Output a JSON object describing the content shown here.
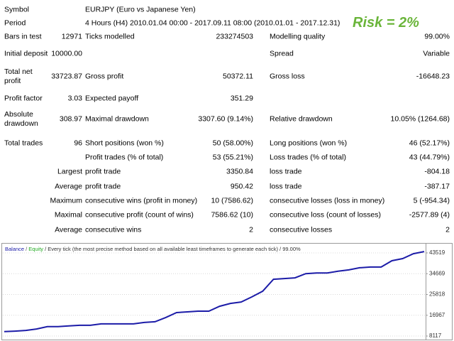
{
  "header": {
    "annotation": "Risk = 2%"
  },
  "report": {
    "rows": [
      {
        "label": "Symbol",
        "text": "EURJPY (Euro vs Japanese Yen)"
      },
      {
        "label": "Period",
        "text": "4 Hours (H4) 2010.01.04 00:00 - 2017.09.11 08:00 (2010.01.01 - 2017.12.31)"
      },
      {
        "label": "Bars in test",
        "value": "12971",
        "label2": "Ticks modelled",
        "value2": "233274503",
        "label3": "Modelling quality",
        "value3": "99.00%"
      },
      {
        "label": "Initial deposit",
        "value": "10000.00",
        "label3": "Spread",
        "value3": "Variable"
      },
      {
        "label": "Total net profit",
        "value": "33723.87",
        "label2": "Gross profit",
        "value2": "50372.11",
        "label3": "Gross loss",
        "value3": "-16648.23"
      },
      {
        "label": "Profit factor",
        "value": "3.03",
        "label2": "Expected payoff",
        "value2": "351.29"
      },
      {
        "label": "Absolute drawdown",
        "value": "308.97",
        "label2": "Maximal drawdown",
        "value2": "3307.60 (9.14%)",
        "label3": "Relative drawdown",
        "value3": "10.05% (1264.68)"
      },
      {
        "label": "Total trades",
        "value": "96",
        "label2": "Short positions (won %)",
        "value2": "50 (58.00%)",
        "label3": "Long positions (won %)",
        "value3": "46 (52.17%)"
      },
      {
        "label2": "Profit trades (% of total)",
        "value2": "53 (55.21%)",
        "label3": "Loss trades (% of total)",
        "value3": "43 (44.79%)"
      },
      {
        "prefix": "Largest",
        "label2": "profit trade",
        "value2": "3350.84",
        "label3": "loss trade",
        "value3": "-804.18"
      },
      {
        "prefix": "Average",
        "label2": "profit trade",
        "value2": "950.42",
        "label3": "loss trade",
        "value3": "-387.17"
      },
      {
        "prefix": "Maximum",
        "label2": "consecutive wins (profit in money)",
        "value2": "10 (7586.62)",
        "label3": "consecutive losses (loss in money)",
        "value3": "5 (-954.34)"
      },
      {
        "prefix": "Maximal",
        "label2": "consecutive profit (count of wins)",
        "value2": "7586.62 (10)",
        "label3": "consecutive loss (count of losses)",
        "value3": "-2577.89 (4)"
      },
      {
        "prefix": "Average",
        "label2": "consecutive wins",
        "value2": "2",
        "label3": "consecutive losses",
        "value3": "2"
      }
    ]
  },
  "chart_data": {
    "type": "line",
    "series": [
      {
        "name": "Balance",
        "color": "#1c1ca8",
        "values": [
          10000,
          10200,
          10500,
          11100,
          12100,
          12100,
          12400,
          12700,
          12700,
          13300,
          13300,
          13300,
          13300,
          13900,
          14200,
          16000,
          18100,
          18400,
          18700,
          18700,
          20800,
          22000,
          22600,
          24800,
          27200,
          32300,
          32600,
          32900,
          34700,
          35000,
          35000,
          35700,
          36300,
          37200,
          37500,
          37500,
          40200,
          41100,
          43200,
          44100
        ]
      }
    ],
    "separator": "/",
    "equity_label": "Equity",
    "equity_color": "#22aa22",
    "note": "/ Every tick (the most precise method based on all available least timeframes to generate each tick) / 99.00%",
    "ylim": [
      6907,
      47152
    ],
    "yticks": [
      8117,
      16967,
      25818,
      34669,
      43519
    ],
    "grid": true
  }
}
